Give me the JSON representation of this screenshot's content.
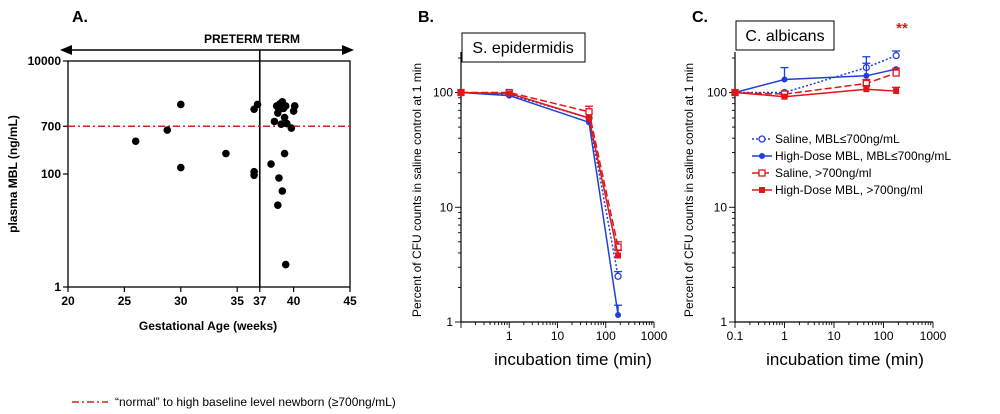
{
  "colors": {
    "blue": "#1f3fd9",
    "red": "#e0161b",
    "threshold": "#d62020",
    "black": "#000000"
  },
  "chart_data": [
    {
      "panel": "A.",
      "type": "scatter",
      "xlabel": "Gestational Age (weeks)",
      "ylabel": "plasma MBL (ng/mL)",
      "x_ticks": [
        "20",
        "25",
        "30",
        "35",
        "37",
        "40",
        "45"
      ],
      "y_ticks": [
        "1",
        "100",
        "700",
        "10000"
      ],
      "xlim": [
        20,
        45
      ],
      "ylim": [
        1,
        10000
      ],
      "y_scale": "log",
      "term_line_x": 37,
      "arrow_label": "PRETERM TERM",
      "threshold_y": 700,
      "threshold_label": "“normal” to high baseline level newborn (≥700ng/mL)",
      "points": [
        {
          "x": 26,
          "y": 380
        },
        {
          "x": 28.8,
          "y": 600
        },
        {
          "x": 30,
          "y": 1700
        },
        {
          "x": 30,
          "y": 130
        },
        {
          "x": 34,
          "y": 230
        },
        {
          "x": 36.5,
          "y": 1400
        },
        {
          "x": 36.8,
          "y": 1700
        },
        {
          "x": 36.5,
          "y": 110
        },
        {
          "x": 36.5,
          "y": 95
        },
        {
          "x": 38.3,
          "y": 850
        },
        {
          "x": 38.5,
          "y": 1600
        },
        {
          "x": 38.6,
          "y": 1200
        },
        {
          "x": 38.7,
          "y": 1400
        },
        {
          "x": 38.8,
          "y": 1750
        },
        {
          "x": 39,
          "y": 1900
        },
        {
          "x": 39.1,
          "y": 1450
        },
        {
          "x": 39.2,
          "y": 1000
        },
        {
          "x": 39.3,
          "y": 1600
        },
        {
          "x": 38.9,
          "y": 760
        },
        {
          "x": 39.4,
          "y": 780
        },
        {
          "x": 40,
          "y": 1300
        },
        {
          "x": 40.1,
          "y": 1600
        },
        {
          "x": 39.8,
          "y": 650
        },
        {
          "x": 38,
          "y": 150
        },
        {
          "x": 38.7,
          "y": 85
        },
        {
          "x": 39,
          "y": 50
        },
        {
          "x": 38.6,
          "y": 28
        },
        {
          "x": 39.2,
          "y": 230
        },
        {
          "x": 39.3,
          "y": 2.5
        }
      ]
    },
    {
      "panel": "B.",
      "type": "line",
      "title": "S. epidermidis",
      "xlabel": "incubation time (min)",
      "ylabel": "Percent of CFU counts in saline control at 1 min",
      "x_scale": "log",
      "y_scale": "log",
      "x_ticks": [
        "1",
        "10",
        "100",
        "1000"
      ],
      "y_ticks": [
        "1",
        "10",
        "100"
      ],
      "xlim": [
        0.1,
        1000
      ],
      "ylim": [
        1,
        200
      ],
      "x": [
        0.1,
        1,
        45,
        180
      ],
      "series": [
        {
          "style": "saline-low",
          "values": [
            100,
            96,
            60,
            2.5
          ],
          "err": [
            0,
            0,
            0,
            0.25
          ]
        },
        {
          "style": "hd-low",
          "values": [
            100,
            94,
            55,
            1.15
          ],
          "err": [
            0,
            0,
            0,
            0.25
          ]
        },
        {
          "style": "saline-high",
          "values": [
            100,
            100,
            68,
            4.5
          ],
          "err": [
            0,
            0,
            8,
            0.5
          ]
        },
        {
          "style": "hd-high",
          "values": [
            100,
            98,
            60,
            3.8
          ],
          "err": [
            0,
            0,
            0,
            0.4
          ]
        }
      ]
    },
    {
      "panel": "C.",
      "type": "line",
      "title": "C. albicans",
      "xlabel": "incubation time (min)",
      "ylabel": "Percent of CFU counts in saline control at 1 min",
      "x_scale": "log",
      "y_scale": "log",
      "x_ticks": [
        "0.1",
        "1",
        "10",
        "100",
        "1000"
      ],
      "y_ticks": [
        "1",
        "10",
        "100"
      ],
      "xlim": [
        0.1,
        1000
      ],
      "ylim": [
        1,
        200
      ],
      "significance": "**",
      "x": [
        0.1,
        1,
        45,
        180
      ],
      "series": [
        {
          "name": "Saline, MBL≤700ng/mL",
          "style": "saline-low",
          "values": [
            100,
            100,
            165,
            210
          ],
          "err": [
            0,
            0,
            40,
            20
          ]
        },
        {
          "name": "High-Dose MBL, MBL≤700ng/mL",
          "style": "hd-low",
          "values": [
            100,
            130,
            140,
            160
          ],
          "err": [
            0,
            35,
            40,
            0
          ]
        },
        {
          "name": "Saline, >700ng/ml",
          "style": "saline-high",
          "values": [
            100,
            97,
            120,
            148
          ],
          "err": [
            0,
            0,
            10,
            15
          ]
        },
        {
          "name": "High-Dose MBL, >700ng/ml",
          "style": "hd-high",
          "values": [
            100,
            92,
            107,
            103
          ],
          "err": [
            0,
            0,
            8,
            8
          ]
        }
      ]
    }
  ]
}
